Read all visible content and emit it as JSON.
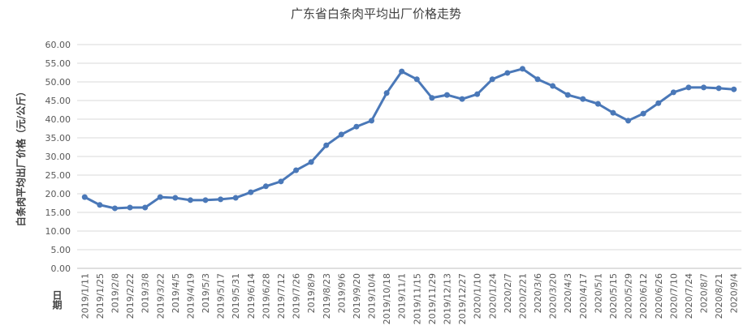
{
  "chart_data": {
    "type": "line",
    "title": "广东省白条肉平均出厂价格走势",
    "y_label": "白条肉平均出厂价格（元/公斤）",
    "x_label": "日期",
    "categories": [
      "2019/1/11",
      "2019/1/25",
      "2019/2/8",
      "2019/2/22",
      "2019/3/8",
      "2019/3/22",
      "2019/4/5",
      "2019/4/19",
      "2019/5/3",
      "2019/5/17",
      "2019/5/31",
      "2019/6/14",
      "2019/6/28",
      "2019/7/12",
      "2019/7/26",
      "2019/8/9",
      "2019/8/23",
      "2019/9/6",
      "2019/9/20",
      "2019/10/4",
      "2019/10/18",
      "2019/11/1",
      "2019/11/15",
      "2019/11/29",
      "2019/12/13",
      "2019/12/27",
      "2020/1/10",
      "2020/1/24",
      "2020/2/7",
      "2020/2/21",
      "2020/3/6",
      "2020/3/20",
      "2020/4/3",
      "2020/4/17",
      "2020/5/1",
      "2020/5/15",
      "2020/5/29",
      "2020/6/12",
      "2020/6/26",
      "2020/7/10",
      "2020/7/24",
      "2020/8/7",
      "2020/8/21",
      "2020/9/4"
    ],
    "series": [
      {
        "color": "#4a78b8",
        "values": [
          19.1,
          17.0,
          16.1,
          16.3,
          16.3,
          19.1,
          18.9,
          18.3,
          18.3,
          18.5,
          18.9,
          20.4,
          22.0,
          23.3,
          26.3,
          28.5,
          33.0,
          35.9,
          38.0,
          39.6,
          47.0,
          52.8,
          50.7,
          45.7,
          46.5,
          45.4,
          46.7,
          50.7,
          52.4,
          53.5,
          50.7,
          48.9,
          46.5,
          45.4,
          44.1,
          41.7,
          39.6,
          41.5,
          44.3,
          47.2,
          48.5,
          48.5,
          48.3,
          48.0
        ]
      }
    ],
    "ylim": [
      0,
      60
    ],
    "yticks": [
      {
        "value": 0,
        "label": "0.00"
      },
      {
        "value": 5,
        "label": "5.00"
      },
      {
        "value": 10,
        "label": "10.00"
      },
      {
        "value": 15,
        "label": "15.00"
      },
      {
        "value": 20,
        "label": "20.00"
      },
      {
        "value": 25,
        "label": "25.00"
      },
      {
        "value": 30,
        "label": "30.00"
      },
      {
        "value": 35,
        "label": "35.00"
      },
      {
        "value": 40,
        "label": "40.00"
      },
      {
        "value": 45,
        "label": "45.00"
      },
      {
        "value": 50,
        "label": "50.00"
      },
      {
        "value": 55,
        "label": "55.00"
      },
      {
        "value": 60,
        "label": "60.00"
      }
    ],
    "grid": true
  }
}
